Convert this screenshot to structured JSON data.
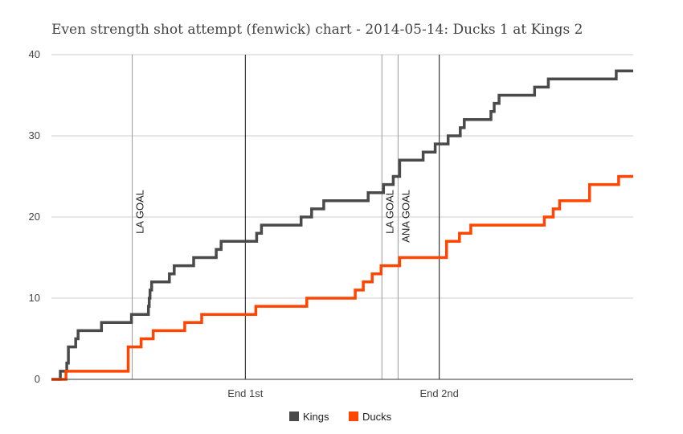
{
  "chart_data": {
    "type": "line",
    "title": "Even strength shot attempt (fenwick) chart - 2014-05-14: Ducks 1 at Kings 2",
    "xlabel": "",
    "ylabel": "",
    "ylim": [
      0,
      40
    ],
    "xlim": [
      0,
      3600
    ],
    "yticks": [
      0,
      10,
      20,
      30,
      40
    ],
    "xticks": [
      {
        "value": 1200,
        "label": "End 1st"
      },
      {
        "value": 2400,
        "label": "End 2nd"
      }
    ],
    "grid": true,
    "legend": "bottom",
    "period_ends": [
      1200,
      2400
    ],
    "goal_lines": [
      {
        "x": 500,
        "label": "LA GOAL"
      },
      {
        "x": 2045,
        "label": "LA GOAL"
      },
      {
        "x": 2145,
        "label": "ANA GOAL"
      }
    ],
    "series": [
      {
        "name": "Kings",
        "color": "#4a4a4a",
        "steps": [
          [
            0,
            0
          ],
          [
            55,
            1
          ],
          [
            95,
            2
          ],
          [
            105,
            4
          ],
          [
            150,
            5
          ],
          [
            165,
            6
          ],
          [
            310,
            7
          ],
          [
            495,
            8
          ],
          [
            600,
            9
          ],
          [
            605,
            10
          ],
          [
            610,
            11
          ],
          [
            620,
            12
          ],
          [
            730,
            13
          ],
          [
            760,
            14
          ],
          [
            880,
            15
          ],
          [
            1020,
            16
          ],
          [
            1050,
            17
          ],
          [
            1270,
            18
          ],
          [
            1300,
            19
          ],
          [
            1545,
            20
          ],
          [
            1610,
            21
          ],
          [
            1685,
            22
          ],
          [
            1960,
            23
          ],
          [
            2055,
            24
          ],
          [
            2115,
            25
          ],
          [
            2155,
            27
          ],
          [
            2300,
            28
          ],
          [
            2375,
            29
          ],
          [
            2455,
            30
          ],
          [
            2530,
            31
          ],
          [
            2555,
            32
          ],
          [
            2720,
            33
          ],
          [
            2740,
            34
          ],
          [
            2770,
            35
          ],
          [
            2990,
            36
          ],
          [
            3075,
            37
          ],
          [
            3495,
            38
          ],
          [
            3600,
            38
          ]
        ]
      },
      {
        "name": "Ducks",
        "color": "#ff4500",
        "steps": [
          [
            0,
            0
          ],
          [
            90,
            1
          ],
          [
            475,
            4
          ],
          [
            555,
            5
          ],
          [
            630,
            6
          ],
          [
            825,
            7
          ],
          [
            930,
            8
          ],
          [
            1265,
            9
          ],
          [
            1580,
            10
          ],
          [
            1880,
            11
          ],
          [
            1930,
            12
          ],
          [
            1985,
            13
          ],
          [
            2040,
            14
          ],
          [
            2155,
            15
          ],
          [
            2445,
            17
          ],
          [
            2525,
            18
          ],
          [
            2595,
            19
          ],
          [
            3050,
            20
          ],
          [
            3105,
            21
          ],
          [
            3145,
            22
          ],
          [
            3330,
            24
          ],
          [
            3510,
            25
          ],
          [
            3600,
            25
          ]
        ]
      }
    ]
  }
}
